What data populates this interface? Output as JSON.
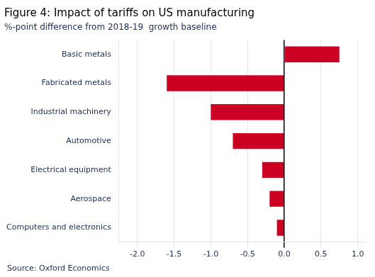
{
  "chart_data": {
    "type": "bar",
    "orientation": "horizontal",
    "title": "Figure 4: Impact of tariffs on US manufacturing",
    "subtitle": "%-point difference from 2018-19  growth baseline",
    "source": "Source: Oxford Economics",
    "categories": [
      "Computers and electronics",
      "Aerospace",
      "Electrical equipment",
      "Automotive",
      "Industrial machinery",
      "Fabricated metals",
      "Basic metals"
    ],
    "values": [
      -0.1,
      -0.2,
      -0.3,
      -0.7,
      -1.0,
      -1.6,
      0.75
    ],
    "color": "#cc0022",
    "xlim": [
      -2.25,
      1.1
    ],
    "xticks": [
      {
        "value": -2.0,
        "label": "-2.0"
      },
      -1.5,
      {
        "value": -1.0,
        "label": "-1.0"
      },
      -0.5,
      {
        "value": 0.0,
        "label": "0.0"
      },
      0.5,
      {
        "value": 1.0,
        "label": "1.0"
      }
    ],
    "grid": true
  }
}
